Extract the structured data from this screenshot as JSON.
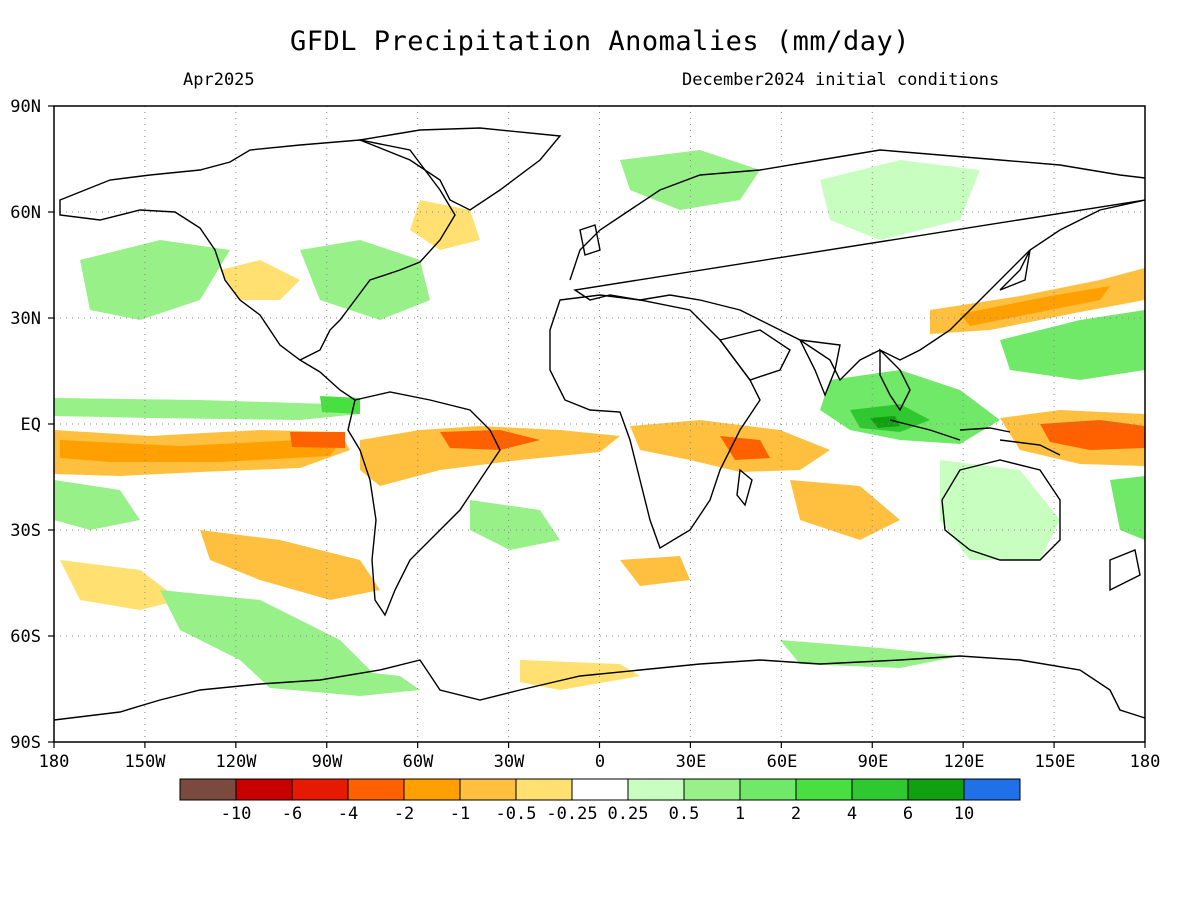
{
  "title": "GFDL Precipitation Anomalies (mm/day)",
  "subtitle_left": "Apr2025",
  "subtitle_right": "December2024 initial conditions",
  "lat_labels": [
    "90N",
    "60N",
    "30N",
    "EQ",
    "30S",
    "60S",
    "90S"
  ],
  "lon_labels": [
    "180",
    "150W",
    "120W",
    "90W",
    "60W",
    "30W",
    "0",
    "30E",
    "60E",
    "90E",
    "120E",
    "150E",
    "180"
  ],
  "colorbar": {
    "colors": [
      "#7a4a3e",
      "#c80000",
      "#e61a00",
      "#ff6000",
      "#ffa000",
      "#ffc040",
      "#ffe070",
      "#ffffff",
      "#c8ffc0",
      "#98f088",
      "#70e868",
      "#48e040",
      "#30c830",
      "#10a010",
      "#2070e8"
    ],
    "labels": [
      "-10",
      "-6",
      "-4",
      "-2",
      "-1",
      "-0.5",
      "-0.25",
      "0.25",
      "0.5",
      "1",
      "2",
      "4",
      "6",
      "10"
    ]
  }
}
